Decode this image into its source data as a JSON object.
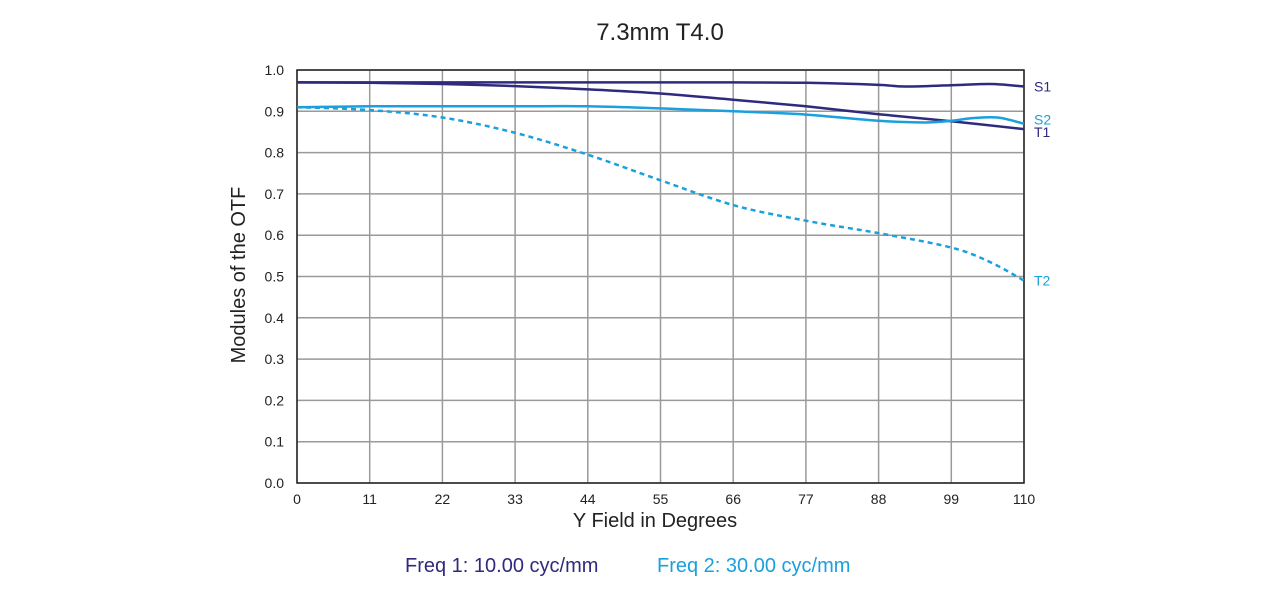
{
  "chart_data": {
    "type": "line",
    "title": "7.3mm T4.0",
    "xlabel": "Y Field in Degrees",
    "ylabel": "Modules of the OTF",
    "xlim": [
      0,
      110
    ],
    "ylim": [
      0.0,
      1.0
    ],
    "x_ticks": [
      "0",
      "11",
      "22",
      "33",
      "44",
      "55",
      "66",
      "77",
      "88",
      "99",
      "110"
    ],
    "y_ticks": [
      "0.0",
      "0.1",
      "0.2",
      "0.3",
      "0.4",
      "0.5",
      "0.6",
      "0.7",
      "0.8",
      "0.9",
      "1.0"
    ],
    "grid": true,
    "colors": {
      "freq1": "#2e2a7e",
      "freq2": "#1aa0dc",
      "grid": "#9a9a9a",
      "axis": "#222222"
    },
    "legend": [
      {
        "label": "Freq 1: 10.00 cyc/mm",
        "color": "#2e2a7e"
      },
      {
        "label": "Freq 2: 30.00 cyc/mm",
        "color": "#1aa0dc"
      }
    ],
    "series": [
      {
        "name": "S1",
        "color": "#2e2a7e",
        "dashed": false,
        "x": [
          0,
          11,
          22,
          33,
          44,
          55,
          66,
          77,
          88,
          92,
          99,
          105,
          110
        ],
        "y": [
          0.97,
          0.97,
          0.97,
          0.97,
          0.97,
          0.97,
          0.97,
          0.969,
          0.964,
          0.96,
          0.963,
          0.966,
          0.96
        ]
      },
      {
        "name": "T1",
        "color": "#2e2a7e",
        "dashed": false,
        "x": [
          0,
          11,
          22,
          33,
          44,
          55,
          66,
          77,
          88,
          99,
          110
        ],
        "y": [
          0.97,
          0.969,
          0.966,
          0.961,
          0.953,
          0.943,
          0.928,
          0.912,
          0.893,
          0.876,
          0.857
        ]
      },
      {
        "name": "S2",
        "color": "#1aa0dc",
        "dashed": false,
        "x": [
          0,
          11,
          22,
          33,
          44,
          55,
          66,
          77,
          88,
          95,
          99,
          102,
          106,
          110
        ],
        "y": [
          0.91,
          0.912,
          0.912,
          0.912,
          0.912,
          0.907,
          0.9,
          0.892,
          0.877,
          0.873,
          0.877,
          0.883,
          0.885,
          0.87
        ]
      },
      {
        "name": "T2",
        "color": "#1aa0dc",
        "dashed": true,
        "x": [
          0,
          11,
          22,
          33,
          44,
          55,
          66,
          77,
          88,
          99,
          105,
          110
        ],
        "y": [
          0.91,
          0.903,
          0.885,
          0.848,
          0.795,
          0.733,
          0.673,
          0.635,
          0.605,
          0.57,
          0.534,
          0.49
        ]
      }
    ]
  }
}
